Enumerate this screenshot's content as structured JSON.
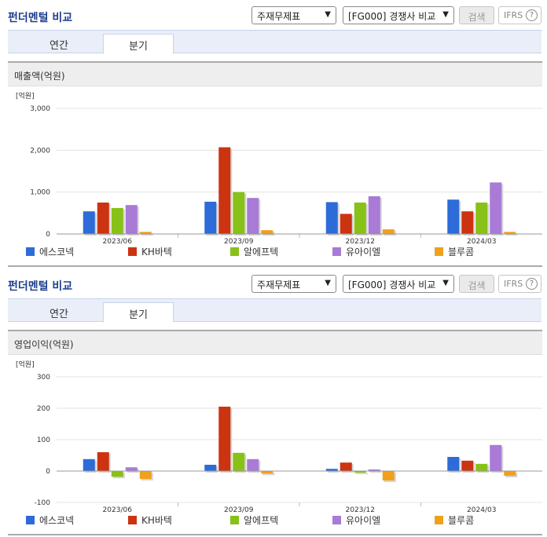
{
  "sections": [
    {
      "title": "펀더멘털 비교",
      "select_report": "주재무제표",
      "select_compare": "[FG000] 경쟁사 비교",
      "search_label": "검색",
      "ifrs_label": "IFRS",
      "help_glyph": "?",
      "tabs": [
        "연간",
        "분기"
      ],
      "active_tab": "분기",
      "chart_heading": "매출액(억원)"
    },
    {
      "title": "펀더멘털 비교",
      "select_report": "주재무제표",
      "select_compare": "[FG000] 경쟁사 비교",
      "search_label": "검색",
      "ifrs_label": "IFRS",
      "help_glyph": "?",
      "tabs": [
        "연간",
        "분기"
      ],
      "active_tab": "분기",
      "chart_heading": "영업이익(억원)"
    }
  ],
  "chart_data": [
    {
      "type": "bar",
      "unit_label": "[억원]",
      "categories": [
        "2023/06",
        "2023/09",
        "2023/12",
        "2024/03"
      ],
      "ylim": [
        0,
        3000
      ],
      "yticks": [
        0,
        1000,
        2000,
        3000
      ],
      "ytick_labels": [
        "0",
        "1,000",
        "2,000",
        "3,000"
      ],
      "grid": true,
      "legend_position": "bottom",
      "series": [
        {
          "name": "에스코넥",
          "color": "#2d6bd8",
          "values": [
            540,
            770,
            760,
            820
          ]
        },
        {
          "name": "KH바텍",
          "color": "#cc3311",
          "values": [
            750,
            2070,
            480,
            540
          ]
        },
        {
          "name": "알에프텍",
          "color": "#88c117",
          "values": [
            620,
            1000,
            750,
            750
          ]
        },
        {
          "name": "유아이엘",
          "color": "#a97ad6",
          "values": [
            690,
            860,
            900,
            1230
          ]
        },
        {
          "name": "블루콤",
          "color": "#f0a11b",
          "values": [
            50,
            90,
            110,
            50
          ]
        }
      ]
    },
    {
      "type": "bar",
      "unit_label": "[억원]",
      "categories": [
        "2023/06",
        "2023/09",
        "2023/12",
        "2024/03"
      ],
      "ylim": [
        -100,
        300
      ],
      "yticks": [
        -100,
        0,
        100,
        200,
        300
      ],
      "ytick_labels": [
        "-100",
        "0",
        "100",
        "200",
        "300"
      ],
      "grid": true,
      "legend_position": "bottom",
      "series": [
        {
          "name": "에스코넥",
          "color": "#2d6bd8",
          "values": [
            38,
            20,
            7,
            45
          ]
        },
        {
          "name": "KH바텍",
          "color": "#cc3311",
          "values": [
            60,
            205,
            27,
            33
          ]
        },
        {
          "name": "알에프텍",
          "color": "#88c117",
          "values": [
            -18,
            58,
            -5,
            23
          ]
        },
        {
          "name": "유아이엘",
          "color": "#a97ad6",
          "values": [
            12,
            38,
            5,
            83
          ]
        },
        {
          "name": "블루콤",
          "color": "#f0a11b",
          "values": [
            -25,
            -8,
            -30,
            -15
          ]
        }
      ]
    }
  ]
}
